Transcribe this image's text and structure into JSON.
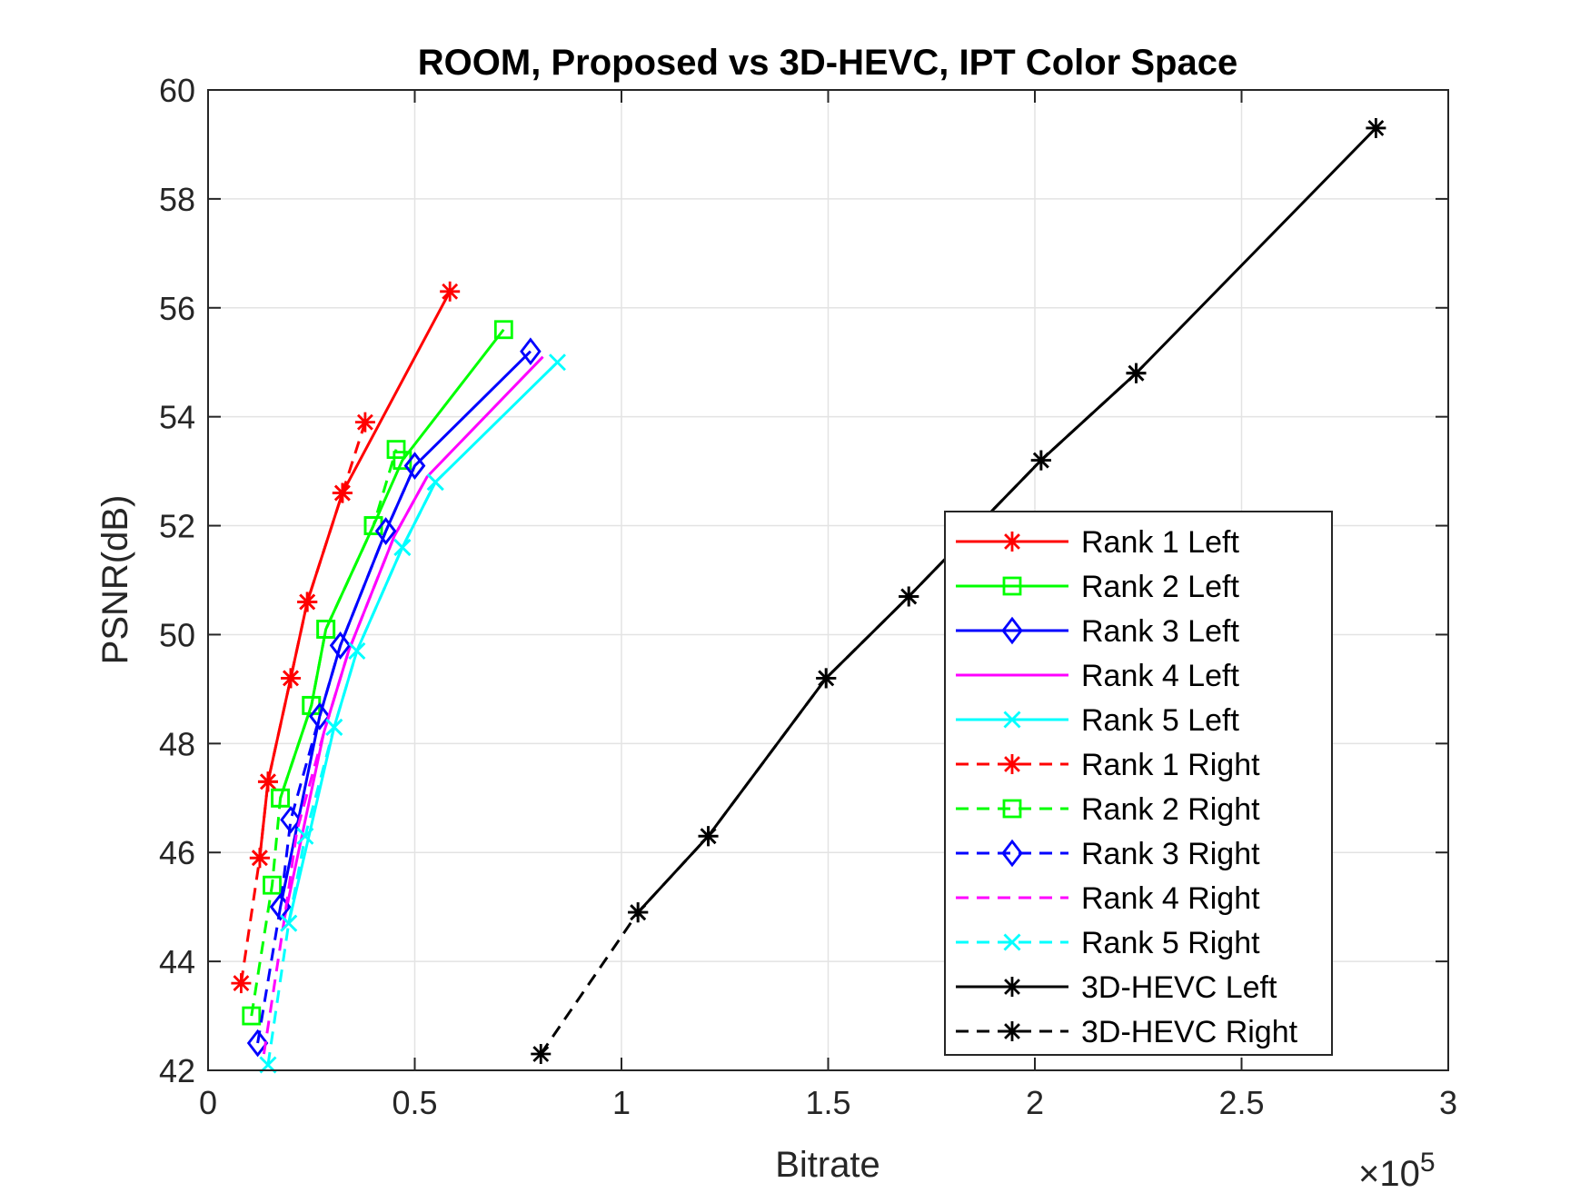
{
  "chart_data": {
    "type": "line",
    "title": "ROOM, Proposed vs 3D-HEVC, IPT Color Space",
    "xlabel": "Bitrate",
    "ylabel": "PSNR(dB)",
    "x_exponent_label": "×10",
    "x_exponent_power": "5",
    "x_scale_factor": 100000,
    "xlim": [
      0,
      300000
    ],
    "ylim": [
      42,
      60
    ],
    "x_ticks": [
      0,
      50000,
      100000,
      150000,
      200000,
      250000,
      300000
    ],
    "x_tick_labels": [
      "0",
      "0.5",
      "1",
      "1.5",
      "2",
      "2.5",
      "3"
    ],
    "y_ticks": [
      42,
      44,
      46,
      48,
      50,
      52,
      54,
      56,
      58,
      60
    ],
    "y_tick_labels": [
      "42",
      "44",
      "46",
      "48",
      "50",
      "52",
      "54",
      "56",
      "58",
      "60"
    ],
    "grid": true,
    "legend_position": "inside-bottom-right",
    "series": [
      {
        "name": "Rank 1 Left",
        "color": "#ff0000",
        "dash": "solid",
        "marker": "asterisk",
        "x": [
          12500,
          14500,
          20000,
          24000,
          32500,
          58500
        ],
        "y": [
          45.9,
          47.3,
          49.2,
          50.6,
          52.6,
          56.3
        ]
      },
      {
        "name": "Rank 2 Left",
        "color": "#00ff00",
        "dash": "solid",
        "marker": "square",
        "x": [
          17500,
          25000,
          28500,
          40000,
          47000,
          71500
        ],
        "y": [
          47.0,
          48.7,
          50.1,
          52.0,
          53.2,
          55.6
        ]
      },
      {
        "name": "Rank 3 Left",
        "color": "#0000ff",
        "dash": "solid",
        "marker": "diamond",
        "x": [
          17500,
          27000,
          32000,
          43000,
          50000,
          78000
        ],
        "y": [
          45.0,
          48.5,
          49.8,
          51.9,
          53.1,
          55.2
        ]
      },
      {
        "name": "Rank 4 Left",
        "color": "#ff00ff",
        "dash": "solid",
        "marker": "none",
        "x": [
          18500,
          28000,
          34000,
          45000,
          53000,
          81000
        ],
        "y": [
          44.8,
          48.2,
          49.7,
          51.8,
          52.9,
          55.1
        ]
      },
      {
        "name": "Rank 5 Left",
        "color": "#00ffff",
        "dash": "solid",
        "marker": "x",
        "x": [
          19500,
          30500,
          36000,
          47000,
          55000,
          84500
        ],
        "y": [
          44.7,
          48.3,
          49.7,
          51.6,
          52.8,
          55.0
        ]
      },
      {
        "name": "Rank 1 Right",
        "color": "#ff0000",
        "dash": "dashed",
        "marker": "asterisk",
        "x": [
          8000,
          12500,
          14500,
          20000,
          24000,
          32500,
          38000
        ],
        "y": [
          43.6,
          45.9,
          47.3,
          49.2,
          50.6,
          52.6,
          53.9
        ]
      },
      {
        "name": "Rank 2 Right",
        "color": "#00ff00",
        "dash": "dashed",
        "marker": "square",
        "x": [
          10500,
          15500,
          17500,
          25000,
          28500,
          40000,
          45500
        ],
        "y": [
          43.0,
          45.4,
          47.0,
          48.7,
          50.1,
          52.0,
          53.4
        ]
      },
      {
        "name": "Rank 3 Right",
        "color": "#0000ff",
        "dash": "dashed",
        "marker": "diamond",
        "x": [
          12000,
          17500,
          20000,
          27000,
          32000,
          43000,
          50000
        ],
        "y": [
          42.5,
          45.0,
          46.6,
          48.5,
          49.8,
          51.9,
          53.1
        ]
      },
      {
        "name": "Rank 4 Right",
        "color": "#ff00ff",
        "dash": "dashed",
        "marker": "none",
        "x": [
          13500,
          18500,
          21500,
          28000,
          34000,
          45000,
          53000
        ],
        "y": [
          42.3,
          44.8,
          46.4,
          48.2,
          49.7,
          51.8,
          52.9
        ]
      },
      {
        "name": "Rank 5 Right",
        "color": "#00ffff",
        "dash": "dashed",
        "marker": "x",
        "x": [
          14500,
          19500,
          23500,
          30500,
          36000,
          47000,
          55000
        ],
        "y": [
          42.1,
          44.7,
          46.3,
          48.3,
          49.7,
          51.6,
          52.8
        ]
      },
      {
        "name": "3D-HEVC Left",
        "color": "#000000",
        "dash": "solid",
        "marker": "asterisk",
        "x": [
          104000,
          121000,
          149500,
          169500,
          201500,
          224500,
          282500
        ],
        "y": [
          44.9,
          46.3,
          49.2,
          50.7,
          53.2,
          54.8,
          59.3
        ]
      },
      {
        "name": "3D-HEVC Right",
        "color": "#000000",
        "dash": "dashed",
        "marker": "asterisk",
        "x": [
          80500,
          104000,
          121000,
          149500,
          169500,
          201500,
          224500
        ],
        "y": [
          42.3,
          44.9,
          46.3,
          49.2,
          50.7,
          53.2,
          54.8
        ]
      }
    ]
  }
}
